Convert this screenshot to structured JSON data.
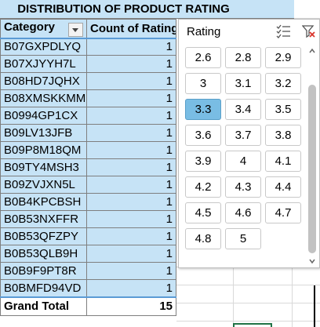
{
  "title": "DISTRIBUTION OF PRODUCT RATING",
  "pivot": {
    "headers": {
      "category": "Category",
      "count": "Count of Rating"
    },
    "rows": [
      {
        "category": "B07GXPDLYQ",
        "count": "1"
      },
      {
        "category": "B07XJYYH7L",
        "count": "1"
      },
      {
        "category": "B08HD7JQHX",
        "count": "1"
      },
      {
        "category": "B08XMSKKMM",
        "count": "1"
      },
      {
        "category": "B0994GP1CX",
        "count": "1"
      },
      {
        "category": "B09LV13JFB",
        "count": "1"
      },
      {
        "category": "B09P8M18QM",
        "count": "1"
      },
      {
        "category": "B09TY4MSH3",
        "count": "1"
      },
      {
        "category": "B09ZVJXN5L",
        "count": "1"
      },
      {
        "category": "B0B4KPCBSH",
        "count": "1"
      },
      {
        "category": "B0B53NXFFR",
        "count": "1"
      },
      {
        "category": "B0B53QFZPY",
        "count": "1"
      },
      {
        "category": "B0B53QLB9H",
        "count": "1"
      },
      {
        "category": "B0B9F9PT8R",
        "count": "1"
      },
      {
        "category": "B0BMFD94VD",
        "count": "1"
      }
    ],
    "total": {
      "label": "Grand Total",
      "count": "15"
    }
  },
  "slicer": {
    "title": "Rating",
    "items": [
      "2.6",
      "2.8",
      "2.9",
      "3",
      "3.1",
      "3.2",
      "3.3",
      "3.4",
      "3.5",
      "3.6",
      "3.7",
      "3.8",
      "3.9",
      "4",
      "4.1",
      "4.2",
      "4.3",
      "4.4",
      "4.5",
      "4.6",
      "4.7",
      "4.8",
      "5"
    ],
    "selected": "3.3",
    "icons": {
      "multi_select": "multi-select-icon",
      "clear_filter": "clear-filter-icon"
    },
    "colors": {
      "selected_bg": "#79bde4",
      "header_bg": "#c6e3f6"
    }
  }
}
